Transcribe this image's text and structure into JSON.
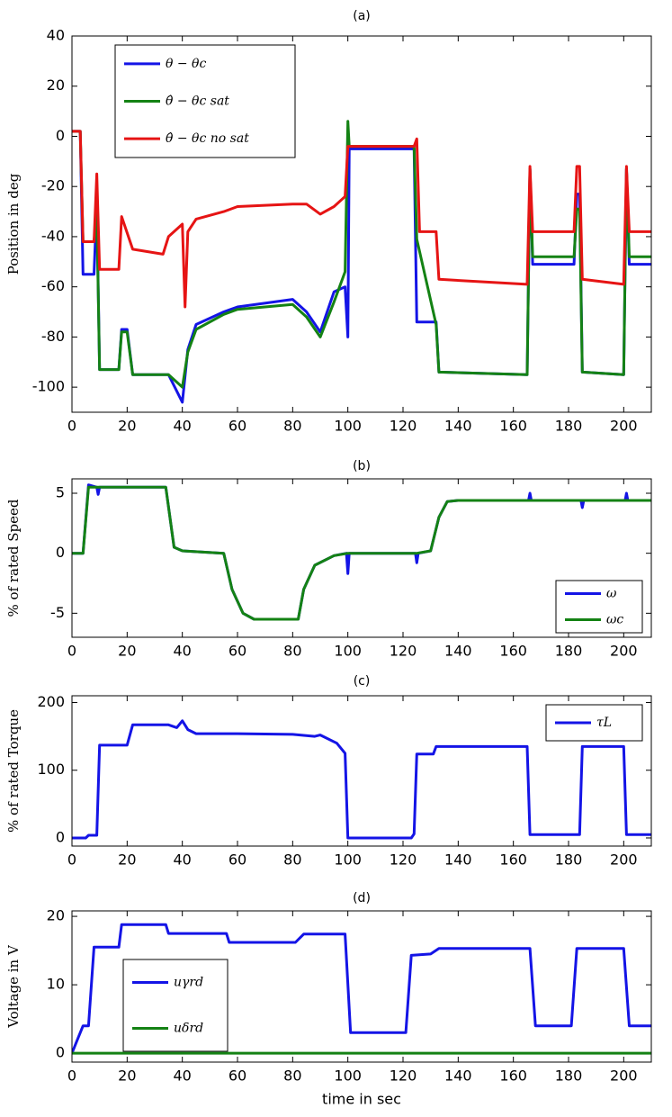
{
  "chart_data": [
    {
      "type": "line",
      "title": "(a)",
      "ylabel": "Position in deg",
      "xlim": [
        0,
        210
      ],
      "xticks": [
        0,
        20,
        40,
        60,
        80,
        100,
        120,
        140,
        160,
        180,
        200
      ],
      "ylim": [
        -110,
        40
      ],
      "yticks": [
        -100,
        -80,
        -60,
        -40,
        -20,
        0,
        20,
        40
      ],
      "legend": "upper left",
      "series": [
        {
          "name": "θ − θc",
          "color": "#1414e6",
          "x": [
            0,
            3,
            4,
            8,
            9,
            10,
            17,
            18,
            20,
            22,
            35,
            40,
            42,
            45,
            55,
            60,
            80,
            85,
            90,
            95,
            99,
            100,
            100.5,
            124,
            125,
            132,
            133,
            165,
            166,
            167,
            182,
            183,
            184,
            185,
            200,
            201,
            202,
            210
          ],
          "values": [
            2,
            2,
            -55,
            -55,
            -27,
            -93,
            -93,
            -77,
            -77,
            -95,
            -95,
            -106,
            -85,
            -75,
            -70,
            -68,
            -65,
            -70,
            -78,
            -62,
            -60,
            -80,
            -5,
            -5,
            -74,
            -74,
            -94,
            -95,
            -13,
            -51,
            -51,
            -23,
            -23,
            -94,
            -95,
            -13,
            -51,
            -51
          ]
        },
        {
          "name": "θ̂ − θc sat",
          "color": "#148214",
          "x": [
            0,
            3,
            4,
            8,
            9,
            10,
            17,
            18,
            20,
            22,
            35,
            40,
            42,
            45,
            55,
            60,
            80,
            85,
            90,
            95,
            99,
            100,
            100.5,
            124,
            125,
            132,
            133,
            165,
            166,
            167,
            182,
            183,
            184,
            185,
            200,
            201,
            202,
            210
          ],
          "values": [
            2,
            2,
            -42,
            -42,
            -30,
            -93,
            -93,
            -78,
            -78,
            -95,
            -95,
            -100,
            -86,
            -77,
            -71,
            -69,
            -67,
            -72,
            -80,
            -66,
            -54,
            6,
            -4,
            -4,
            -41,
            -75,
            -94,
            -95,
            -13,
            -48,
            -48,
            -29,
            -29,
            -94,
            -95,
            -13,
            -48,
            -48
          ]
        },
        {
          "name": "θ̂ − θc no sat",
          "color": "#e61414",
          "x": [
            0,
            3,
            4,
            8,
            9,
            10,
            17,
            18,
            22,
            33,
            35,
            40,
            41,
            42,
            45,
            55,
            60,
            80,
            85,
            90,
            95,
            99,
            100,
            124,
            125,
            126,
            132,
            133,
            165,
            166,
            167,
            182,
            183,
            184,
            185,
            200,
            201,
            202,
            210
          ],
          "values": [
            2,
            2,
            -42,
            -42,
            -15,
            -53,
            -53,
            -32,
            -45,
            -47,
            -40,
            -35,
            -68,
            -38,
            -33,
            -30,
            -28,
            -27,
            -27,
            -31,
            -28,
            -24,
            -4,
            -4,
            -1,
            -38,
            -38,
            -57,
            -59,
            -12,
            -38,
            -38,
            -12,
            -12,
            -57,
            -59,
            -12,
            -38,
            -38
          ]
        }
      ]
    },
    {
      "type": "line",
      "title": "(b)",
      "ylabel": "% of rated Speed",
      "xlim": [
        0,
        210
      ],
      "xticks": [
        0,
        20,
        40,
        60,
        80,
        100,
        120,
        140,
        160,
        180,
        200
      ],
      "ylim": [
        -7,
        6.2
      ],
      "yticks": [
        -5,
        0,
        5
      ],
      "legend": "lower right",
      "series": [
        {
          "name": "ω",
          "color": "#1414e6",
          "x": [
            0,
            4,
            6,
            9,
            9.5,
            10,
            34,
            37,
            40,
            55,
            58,
            62,
            66,
            82,
            84,
            88,
            95,
            99.5,
            100,
            100.5,
            124.5,
            125,
            125.5,
            130,
            133,
            136,
            140,
            165.5,
            166,
            166.5,
            184.5,
            185,
            185.5,
            200.5,
            201,
            201.5,
            210
          ],
          "values": [
            0,
            0,
            5.7,
            5.5,
            4.9,
            5.5,
            5.5,
            0.5,
            0.2,
            0,
            -3,
            -5,
            -5.5,
            -5.5,
            -3,
            -1,
            -0.2,
            0,
            -1.7,
            0,
            0,
            -0.8,
            0,
            0.2,
            3,
            4.3,
            4.4,
            4.4,
            5,
            4.4,
            4.4,
            3.8,
            4.4,
            4.4,
            5,
            4.4,
            4.4
          ]
        },
        {
          "name": "ωc",
          "color": "#148214",
          "x": [
            0,
            4,
            6,
            34,
            37,
            40,
            55,
            58,
            62,
            66,
            82,
            84,
            88,
            95,
            100,
            125,
            130,
            133,
            136,
            140,
            210
          ],
          "values": [
            0,
            0,
            5.5,
            5.5,
            0.5,
            0.2,
            0,
            -3,
            -5,
            -5.5,
            -5.5,
            -3,
            -1,
            -0.2,
            0,
            0,
            0.2,
            3,
            4.3,
            4.4,
            4.4
          ]
        }
      ]
    },
    {
      "type": "line",
      "title": "(c)",
      "ylabel": "% of rated Torque",
      "xlim": [
        0,
        210
      ],
      "xticks": [
        0,
        20,
        40,
        60,
        80,
        100,
        120,
        140,
        160,
        180,
        200
      ],
      "ylim": [
        -12,
        210
      ],
      "yticks": [
        0,
        100,
        200
      ],
      "legend": "upper right",
      "series": [
        {
          "name": "τL",
          "color": "#1414e6",
          "x": [
            0,
            5,
            6,
            9,
            10,
            20,
            22,
            35,
            38,
            40,
            42,
            45,
            55,
            60,
            80,
            88,
            90,
            96,
            99,
            100,
            123,
            124,
            125,
            131,
            132,
            165,
            166,
            184,
            185,
            199,
            200,
            201,
            210
          ],
          "values": [
            0,
            0,
            4,
            4,
            137,
            137,
            167,
            167,
            163,
            173,
            160,
            154,
            154,
            154,
            153,
            150,
            152,
            140,
            125,
            0,
            0,
            6,
            124,
            124,
            135,
            135,
            5,
            5,
            135,
            135,
            135,
            5,
            5
          ]
        }
      ]
    },
    {
      "type": "line",
      "title": "(d)",
      "ylabel": "Voltage in V",
      "xlabel": "time in sec",
      "xlim": [
        0,
        210
      ],
      "xticks": [
        0,
        20,
        40,
        60,
        80,
        100,
        120,
        140,
        160,
        180,
        200
      ],
      "ylim": [
        -1.3,
        20.8
      ],
      "yticks": [
        0,
        10,
        20
      ],
      "legend": "lower left",
      "series": [
        {
          "name": "uγrd",
          "color": "#1414e6",
          "x": [
            0,
            2,
            4,
            6,
            8,
            10,
            17,
            18,
            34,
            35,
            56,
            57,
            81,
            84,
            99,
            101,
            121,
            123,
            130,
            133,
            166,
            168,
            181,
            183,
            200,
            202,
            210
          ],
          "values": [
            0,
            2,
            4,
            4,
            15.5,
            15.5,
            15.5,
            18.8,
            18.8,
            17.5,
            17.5,
            16.2,
            16.2,
            17.4,
            17.4,
            3,
            3,
            14.3,
            14.5,
            15.3,
            15.3,
            4,
            4,
            15.3,
            15.3,
            4,
            4
          ]
        },
        {
          "name": "uδrd",
          "color": "#148214",
          "x": [
            0,
            210
          ],
          "values": [
            0,
            0
          ]
        }
      ]
    }
  ]
}
